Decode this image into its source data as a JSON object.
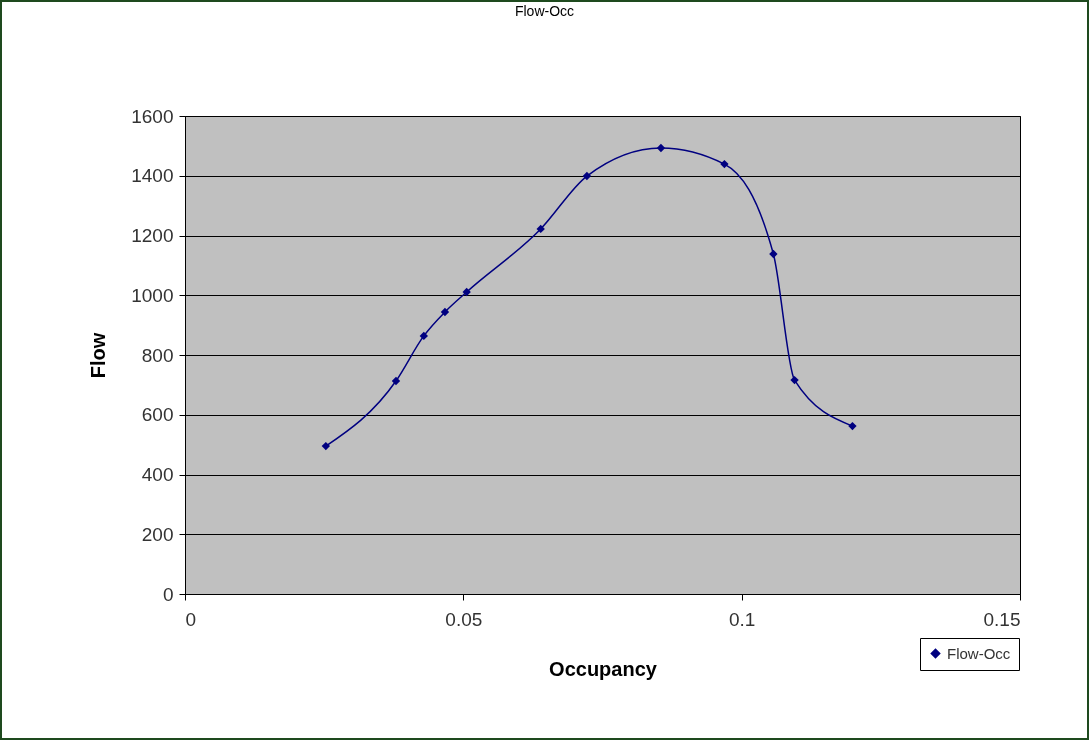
{
  "chart_data": {
    "type": "line",
    "title": "Flow-Occ",
    "xlabel": "Occupancy",
    "ylabel": "Flow",
    "x": [
      0.0253,
      0.0379,
      0.0429,
      0.0467,
      0.0506,
      0.0639,
      0.0722,
      0.0855,
      0.0969,
      0.1057,
      0.1095,
      0.1199
    ],
    "series": [
      {
        "name": "Flow-Occ",
        "color": "#000080",
        "values": [
          495,
          713,
          864,
          944,
          1011,
          1222,
          1399,
          1493,
          1439,
          1138,
          716,
          562
        ]
      }
    ],
    "xlim": [
      0,
      0.15
    ],
    "xticks": [
      0,
      0.05,
      0.1,
      0.15
    ],
    "ylim": [
      0,
      1600
    ],
    "yticks": [
      0,
      200,
      400,
      600,
      800,
      1000,
      1200,
      1400,
      1600
    ],
    "grid": "y",
    "legend": "bottom right",
    "marker": "diamond",
    "line_style": "solid"
  }
}
